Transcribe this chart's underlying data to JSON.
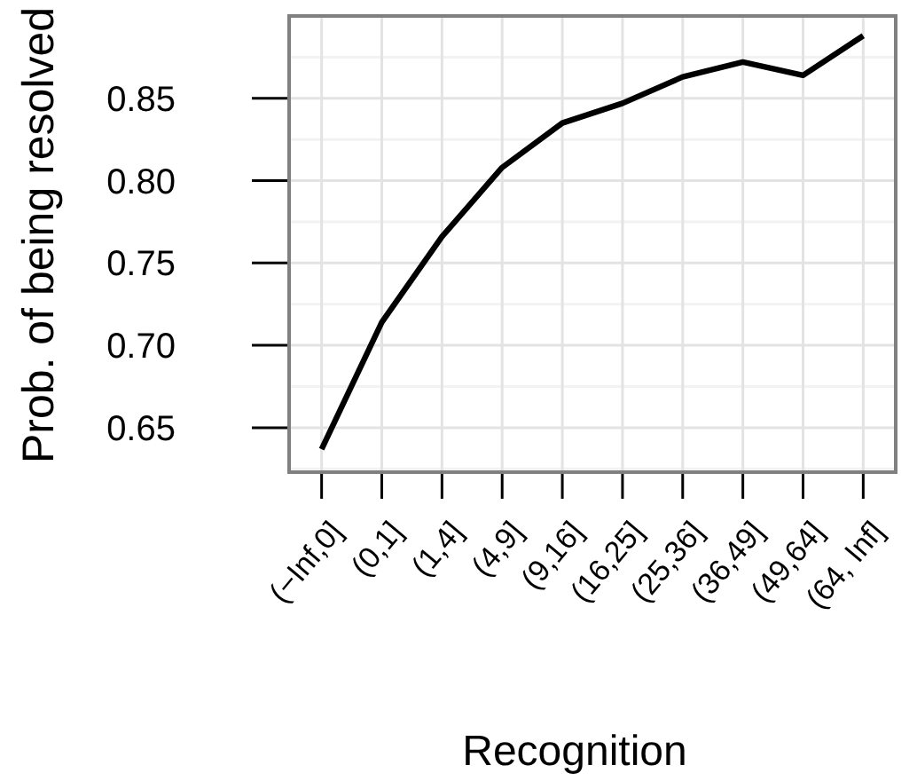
{
  "chart_data": {
    "type": "line",
    "xlabel": "Recognition",
    "ylabel": "Prob. of being resolved",
    "categories": [
      "(−Inf,0]",
      "(0,1]",
      "(1,4]",
      "(4,9]",
      "(9,16]",
      "(16,25]",
      "(25,36]",
      "(36,49]",
      "(49,64]",
      "(64, Inf]"
    ],
    "series": [
      {
        "color": "#000000",
        "values": [
          0.637,
          0.714,
          0.766,
          0.808,
          0.835,
          0.847,
          0.863,
          0.872,
          0.864,
          0.888
        ]
      }
    ],
    "ylim": [
      0.623,
      0.9
    ],
    "yticks": [
      0.65,
      {
        "value": 0.7,
        "label": "0.70"
      },
      0.75,
      {
        "value": 0.8,
        "label": "0.80"
      },
      0.85
    ],
    "grid": true,
    "marker": "none",
    "line_style": "solid"
  }
}
